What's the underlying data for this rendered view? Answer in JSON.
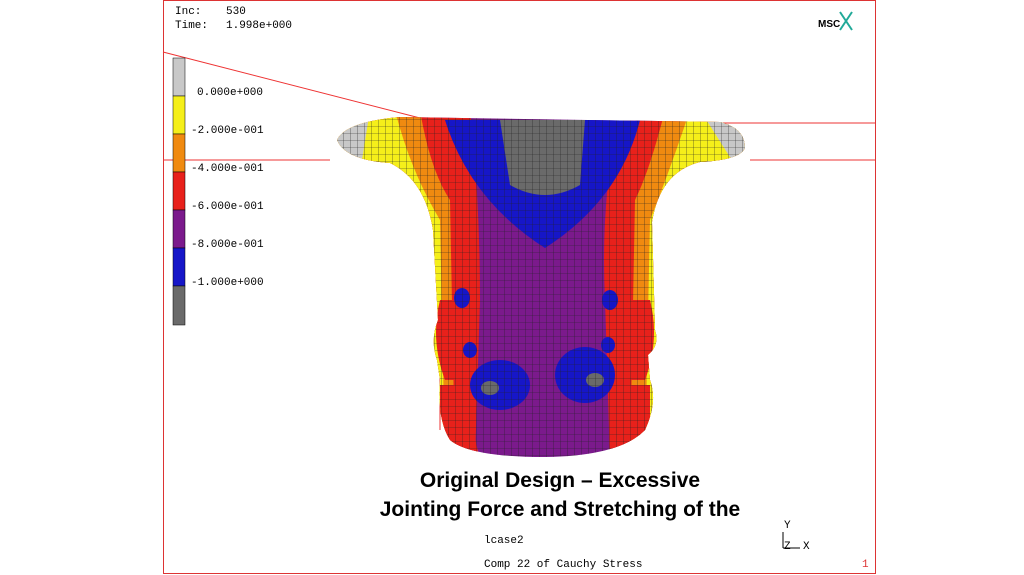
{
  "header": {
    "inc_label": "Inc:",
    "inc_value": "530",
    "time_label": "Time:",
    "time_value": "1.998e+000",
    "logo": "MSC"
  },
  "legend": {
    "labels": [
      "0.000e+000",
      "-2.000e-001",
      "-4.000e-001",
      "-6.000e-001",
      "-8.000e-001",
      "-1.000e+000"
    ]
  },
  "caption": {
    "lines": [
      "Original Design – Excessive",
      "Jointing Force and Stretching of the"
    ]
  },
  "footer": {
    "load_case": "lcase2",
    "quantity": "Comp 22 of Cauchy Stress",
    "page": "1"
  },
  "triad": {
    "y": "Y",
    "z": "Z",
    "x": "X"
  }
}
